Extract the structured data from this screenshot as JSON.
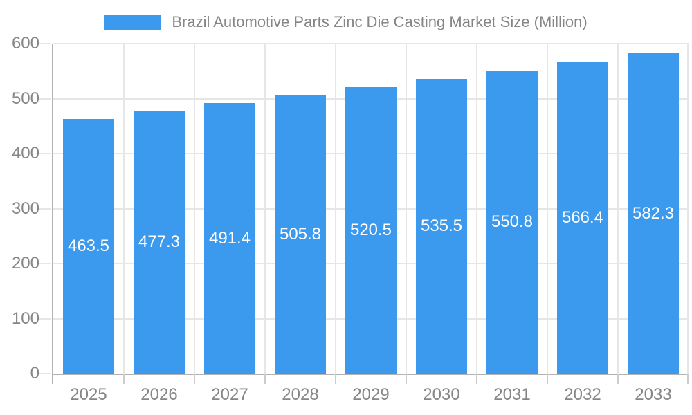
{
  "chart_data": {
    "type": "bar",
    "title": "Brazil Automotive Parts Zinc Die Casting Market Size (Million)",
    "categories": [
      "2025",
      "2026",
      "2027",
      "2028",
      "2029",
      "2030",
      "2031",
      "2032",
      "2033"
    ],
    "values": [
      463.5,
      477.3,
      491.4,
      505.8,
      520.5,
      535.5,
      550.8,
      566.4,
      582.3
    ],
    "xlabel": "",
    "ylabel": "",
    "ylim": [
      0,
      600
    ],
    "yticks": [
      0,
      100,
      200,
      300,
      400,
      500,
      600
    ],
    "grid": true,
    "legend_position": "top",
    "colors": {
      "bar": "#3b99ee",
      "value_label": "#ffffff",
      "axis_text": "#868686",
      "axis_line": "#b3b3b3",
      "grid": "#e6e6e6"
    }
  }
}
